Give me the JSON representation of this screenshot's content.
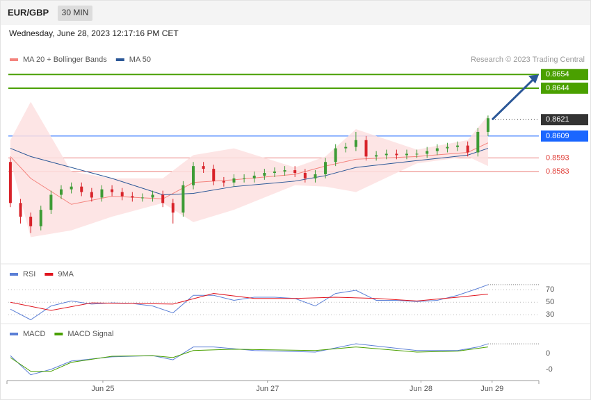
{
  "header": {
    "symbol": "EUR/GBP",
    "interval": "30 MIN",
    "timestamp": "Wednesday, June 28, 2023 12:17:16 PM CET",
    "credit": "Research © 2023 Trading Central"
  },
  "chart_data": [
    {
      "type": "candlestick",
      "xlim": [
        -0.2,
        52
      ],
      "ylim": [
        0.8518,
        0.8678
      ],
      "up_color": "#3d9b35",
      "down_color": "#d8232a",
      "open": [
        0.859,
        0.856,
        0.855,
        0.8543,
        0.8555,
        0.8566,
        0.857,
        0.8572,
        0.8568,
        0.8564,
        0.857,
        0.8568,
        0.8565,
        0.8564,
        0.8564,
        0.8566,
        0.856,
        0.8553,
        0.8573,
        0.8587,
        0.8585,
        0.8576,
        0.8575,
        0.8578,
        0.8578,
        0.858,
        0.8582,
        0.8583,
        0.8584,
        0.8582,
        0.8578,
        0.8581,
        0.859,
        0.86,
        0.8601,
        0.8606,
        0.8594,
        0.8595,
        0.8596,
        0.8595,
        0.8596,
        0.8596,
        0.8598,
        0.86,
        0.8601,
        0.8602,
        0.8597,
        0.8612
      ],
      "high": [
        0.8593,
        0.8563,
        0.8553,
        0.8558,
        0.8569,
        0.8573,
        0.8575,
        0.8575,
        0.8571,
        0.8573,
        0.8573,
        0.8571,
        0.8568,
        0.8567,
        0.8569,
        0.8569,
        0.8563,
        0.8576,
        0.859,
        0.859,
        0.8588,
        0.8579,
        0.8581,
        0.8581,
        0.8583,
        0.8585,
        0.8586,
        0.8587,
        0.8587,
        0.8585,
        0.8584,
        0.8593,
        0.8603,
        0.8604,
        0.8612,
        0.8609,
        0.8598,
        0.8599,
        0.8599,
        0.8599,
        0.8599,
        0.8601,
        0.8603,
        0.8604,
        0.8605,
        0.8605,
        0.8615,
        0.8624
      ],
      "low": [
        0.8557,
        0.8545,
        0.8538,
        0.854,
        0.8552,
        0.8563,
        0.8567,
        0.8565,
        0.8561,
        0.8561,
        0.8565,
        0.8562,
        0.8561,
        0.8561,
        0.8561,
        0.8557,
        0.8545,
        0.855,
        0.857,
        0.8582,
        0.8573,
        0.8572,
        0.8572,
        0.8575,
        0.8575,
        0.8577,
        0.8579,
        0.858,
        0.8579,
        0.8575,
        0.8575,
        0.8578,
        0.8587,
        0.8597,
        0.8598,
        0.8591,
        0.8591,
        0.8592,
        0.8592,
        0.8592,
        0.8593,
        0.8593,
        0.8595,
        0.8597,
        0.8598,
        0.8594,
        0.8594,
        0.8609
      ],
      "close": [
        0.856,
        0.855,
        0.8543,
        0.8555,
        0.8566,
        0.857,
        0.8572,
        0.8568,
        0.8564,
        0.857,
        0.8568,
        0.8565,
        0.8564,
        0.8564,
        0.8566,
        0.856,
        0.8553,
        0.8573,
        0.8587,
        0.8585,
        0.8576,
        0.8575,
        0.8578,
        0.8578,
        0.858,
        0.8582,
        0.8583,
        0.8584,
        0.8582,
        0.8578,
        0.8581,
        0.859,
        0.86,
        0.8601,
        0.8606,
        0.8594,
        0.8595,
        0.8596,
        0.8595,
        0.8596,
        0.8596,
        0.8598,
        0.86,
        0.8601,
        0.8602,
        0.8597,
        0.8612,
        0.8622
      ],
      "series": [
        {
          "name": "MA 20 + Bollinger Bands",
          "color": "#f4837d",
          "band_color": "#fde0e0",
          "x": [
            0,
            2,
            6,
            10,
            15,
            18,
            22,
            28,
            31,
            34,
            40,
            45,
            47
          ],
          "values": [
            0.8594,
            0.8578,
            0.8559,
            0.8565,
            0.8563,
            0.8575,
            0.8577,
            0.8581,
            0.8587,
            0.8592,
            0.8594,
            0.8597,
            0.8604
          ],
          "band_upper": [
            0.8606,
            0.8634,
            0.8583,
            0.8578,
            0.8578,
            0.8595,
            0.86,
            0.8586,
            0.8594,
            0.8614,
            0.8599,
            0.8606,
            0.8624
          ],
          "band_lower": [
            0.8591,
            0.8535,
            0.854,
            0.855,
            0.856,
            0.8546,
            0.8555,
            0.8573,
            0.8572,
            0.8568,
            0.8589,
            0.8594,
            0.8587
          ]
        },
        {
          "name": "MA 50",
          "color": "#2b5797",
          "x": [
            0,
            2,
            6,
            10,
            15,
            18,
            22,
            28,
            31,
            34,
            40,
            45,
            47
          ],
          "values": [
            0.86,
            0.8594,
            0.8586,
            0.8578,
            0.8566,
            0.8567,
            0.8572,
            0.8576,
            0.858,
            0.8586,
            0.8591,
            0.8595,
            0.86
          ]
        }
      ],
      "levels": [
        {
          "value": 0.8654,
          "color": "#4aa000",
          "boxed": true
        },
        {
          "value": 0.8644,
          "color": "#4aa000",
          "boxed": true
        },
        {
          "value": 0.8621,
          "color": "#333333",
          "boxed": true,
          "dotted": true
        },
        {
          "value": 0.8609,
          "color": "#1a66ff",
          "boxed": true
        },
        {
          "value": 0.8593,
          "color": "#e0403a",
          "boxed": false
        },
        {
          "value": 0.8583,
          "color": "#e0403a",
          "boxed": false
        }
      ]
    },
    {
      "type": "line",
      "xlim": [
        -0.2,
        52
      ],
      "ylim": [
        17,
        89
      ],
      "yticks": [
        30,
        50,
        70
      ],
      "grid": true,
      "series": [
        {
          "name": "RSI",
          "color": "#5b7fd6",
          "x": [
            0,
            2,
            4,
            6,
            8,
            10,
            12,
            14,
            16,
            18,
            20,
            22,
            24,
            26,
            28,
            30,
            32,
            34,
            36,
            38,
            40,
            42,
            44,
            46,
            47
          ],
          "values": [
            39,
            22,
            44,
            52,
            47,
            49,
            48,
            44,
            33,
            61,
            61,
            53,
            58,
            58,
            56,
            44,
            64,
            69,
            53,
            53,
            51,
            53,
            61,
            72,
            78
          ]
        },
        {
          "name": "9MA",
          "color": "#e0141e",
          "x": [
            0,
            4,
            8,
            12,
            16,
            20,
            24,
            28,
            32,
            36,
            40,
            44,
            47
          ],
          "values": [
            50,
            37,
            49,
            48,
            47,
            64,
            56,
            56,
            58,
            56,
            52,
            58,
            63
          ]
        }
      ]
    },
    {
      "type": "line",
      "xlim": [
        -0.2,
        52
      ],
      "ylim": [
        -0.00085,
        0.00041
      ],
      "yticks": [
        0,
        {
          "value": -0.0005,
          "label": "-0"
        }
      ],
      "xticks": [
        {
          "value": 9.1,
          "label": "Jun 25"
        },
        {
          "value": 25.3,
          "label": "Jun 27"
        },
        {
          "value": 40.4,
          "label": "Jun 28"
        },
        {
          "value": 47.4,
          "label": "Jun 29"
        }
      ],
      "series": [
        {
          "name": "MACD",
          "color": "#5b7fd6",
          "x": [
            0,
            2,
            4,
            6,
            10,
            14,
            16,
            18,
            20,
            24,
            30,
            34,
            40,
            44,
            46,
            47
          ],
          "values": [
            -7e-05,
            -0.00067,
            -0.0005,
            -0.00024,
            -0.00011,
            -7e-05,
            -0.0002,
            0.0002,
            0.0002,
            9e-05,
            4e-05,
            0.0003,
            9e-05,
            9e-05,
            0.0002,
            0.0003
          ]
        },
        {
          "name": "MACD Signal",
          "color": "#4aa000",
          "x": [
            0,
            2,
            4,
            6,
            10,
            14,
            16,
            18,
            22,
            30,
            34,
            40,
            44,
            47
          ],
          "values": [
            -0.00013,
            -0.00056,
            -0.00056,
            -0.00028,
            -9e-05,
            -7e-05,
            -0.00013,
            9e-05,
            0.00013,
            9e-05,
            0.0002,
            4e-05,
            7e-05,
            0.0002
          ]
        }
      ]
    }
  ]
}
